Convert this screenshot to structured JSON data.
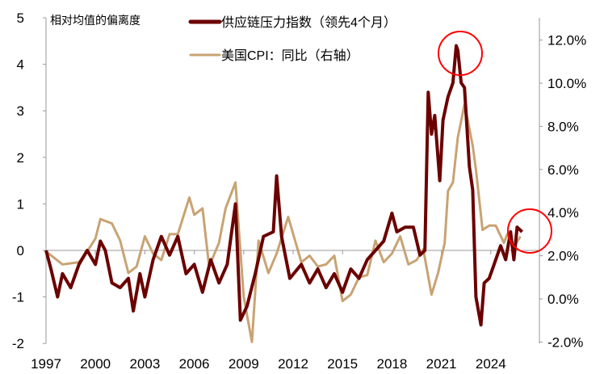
{
  "chart_data": {
    "type": "line",
    "title": "",
    "ylabel": "相对均值的偏离度",
    "ylabel_right": "",
    "ylim": [
      -2,
      5
    ],
    "ylim_right": [
      -2.0,
      12.0
    ],
    "yticks": [
      "5",
      "4",
      "3",
      "2",
      "1",
      "0",
      "-1",
      "-2"
    ],
    "yticks_right": [
      "12.0%",
      "10.0%",
      "8.0%",
      "6.0%",
      "4.0%",
      "2.0%",
      "0.0%",
      "-2.0%"
    ],
    "xticks": [
      "1997",
      "2000",
      "2003",
      "2006",
      "2009",
      "2012",
      "2015",
      "2018",
      "2021",
      "2024"
    ],
    "grid": false,
    "legend_position": "top",
    "colors": {
      "pressure": "#6b0000",
      "cpi": "#c8a373",
      "annotation": "#ff0000",
      "negative_tick": "#e00000"
    },
    "series": [
      {
        "name": "供应链压力指数（领先4个月）",
        "axis": "left",
        "x": [
          1997.0,
          1997.3,
          1997.7,
          1998.0,
          1998.5,
          1999.0,
          1999.5,
          2000.0,
          2000.3,
          2000.6,
          2001.0,
          2001.5,
          2002.0,
          2002.3,
          2002.7,
          2003.0,
          2003.5,
          2004.0,
          2004.5,
          2005.0,
          2005.5,
          2006.0,
          2006.5,
          2007.0,
          2007.5,
          2008.0,
          2008.5,
          2008.8,
          2009.2,
          2009.7,
          2010.2,
          2010.8,
          2011.0,
          2011.3,
          2011.8,
          2012.5,
          2013.0,
          2013.5,
          2014.0,
          2014.5,
          2015.0,
          2015.5,
          2016.0,
          2016.5,
          2017.0,
          2017.5,
          2018.0,
          2018.3,
          2018.8,
          2019.3,
          2019.7,
          2020.0,
          2020.2,
          2020.4,
          2020.6,
          2020.9,
          2021.1,
          2021.4,
          2021.7,
          2021.9,
          2022.0,
          2022.2,
          2022.4,
          2022.7,
          2022.9,
          2023.1,
          2023.4,
          2023.6,
          2023.9,
          2024.2,
          2024.6,
          2024.9,
          2025.2,
          2025.4,
          2025.6,
          2025.9
        ],
        "values": [
          0,
          -0.4,
          -1.0,
          -0.5,
          -0.8,
          -0.3,
          0.0,
          -0.3,
          0.2,
          0.0,
          -0.7,
          -0.8,
          -0.6,
          -1.3,
          -0.5,
          -1.0,
          -0.2,
          0.3,
          -0.1,
          0.3,
          -0.5,
          -0.3,
          -0.9,
          -0.2,
          -0.7,
          -0.3,
          1.0,
          -1.5,
          -1.2,
          -0.5,
          0.3,
          0.4,
          1.6,
          0.3,
          -0.6,
          -0.3,
          -0.7,
          -0.4,
          -0.8,
          -0.5,
          -0.9,
          -0.4,
          -0.6,
          -0.2,
          0.0,
          0.2,
          0.8,
          0.4,
          0.5,
          0.5,
          -0.1,
          0.0,
          3.4,
          2.5,
          2.9,
          1.5,
          2.8,
          3.3,
          3.6,
          4.4,
          4.3,
          3.6,
          3.5,
          1.8,
          1.3,
          -1.0,
          -1.6,
          -0.7,
          -0.6,
          -0.3,
          0.1,
          -0.2,
          0.4,
          -0.2,
          0.5,
          0.4
        ]
      },
      {
        "name": "美国CPI：同比（右轴）",
        "axis": "right",
        "x": [
          1997.0,
          1998.0,
          1999.0,
          1999.5,
          2000.0,
          2000.3,
          2001.0,
          2001.5,
          2002.0,
          2002.5,
          2003.0,
          2003.5,
          2004.0,
          2004.5,
          2005.0,
          2005.7,
          2006.0,
          2006.5,
          2006.9,
          2007.5,
          2007.9,
          2008.5,
          2009.0,
          2009.5,
          2009.9,
          2010.5,
          2011.0,
          2011.7,
          2012.5,
          2013.0,
          2013.5,
          2014.0,
          2014.5,
          2015.0,
          2015.5,
          2016.0,
          2016.5,
          2017.0,
          2017.5,
          2018.0,
          2018.5,
          2019.0,
          2019.5,
          2019.9,
          2020.4,
          2020.8,
          2021.2,
          2021.4,
          2021.7,
          2022.0,
          2022.4,
          2022.6,
          2022.9,
          2023.1,
          2023.5,
          2023.9,
          2024.3,
          2024.8,
          2025.0,
          2025.4,
          2025.8
        ],
        "values": [
          2.2,
          1.6,
          1.7,
          2.2,
          2.8,
          3.7,
          3.5,
          2.7,
          1.2,
          1.5,
          2.9,
          2.1,
          1.8,
          3.0,
          3.0,
          4.7,
          3.9,
          4.2,
          1.5,
          2.6,
          4.2,
          5.4,
          0.1,
          -2.0,
          2.7,
          1.2,
          2.1,
          3.8,
          1.7,
          2.0,
          1.5,
          1.6,
          2.0,
          -0.1,
          0.2,
          1.0,
          1.1,
          2.7,
          1.7,
          2.1,
          2.9,
          1.6,
          1.8,
          2.3,
          0.2,
          1.2,
          2.6,
          5.0,
          5.4,
          7.5,
          9.0,
          8.3,
          7.1,
          6.0,
          3.2,
          3.4,
          3.4,
          2.6,
          3.0,
          2.4,
          2.9
        ]
      }
    ]
  }
}
